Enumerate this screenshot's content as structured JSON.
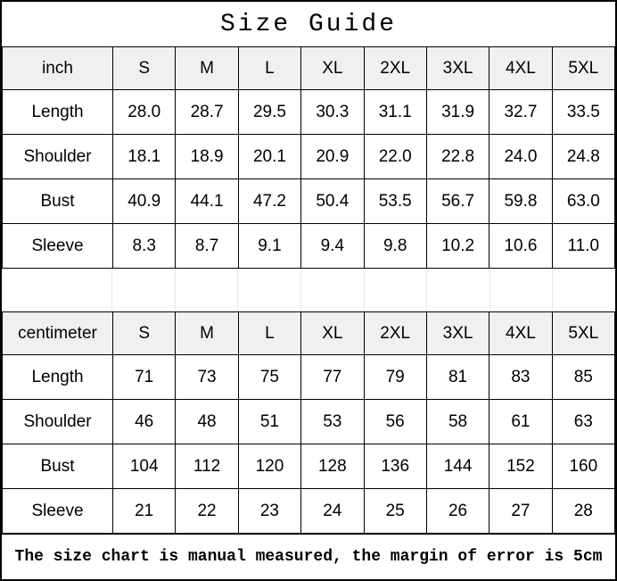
{
  "title": "Size Guide",
  "footer_note": "The size chart is manual measured, the margin of error is 5cm",
  "colors": {
    "border": "#000000",
    "header_row_bg": "#f0f0f0",
    "gap_line": "#e8e8e8",
    "text": "#000000",
    "background": "#ffffff"
  },
  "chart_data": [
    {
      "type": "table",
      "title": "Size Guide",
      "unit": "inch",
      "columns": [
        "S",
        "M",
        "L",
        "XL",
        "2XL",
        "3XL",
        "4XL",
        "5XL"
      ],
      "rows": [
        {
          "label": "Length",
          "values": [
            "28.0",
            "28.7",
            "29.5",
            "30.3",
            "31.1",
            "31.9",
            "32.7",
            "33.5"
          ]
        },
        {
          "label": "Shoulder",
          "values": [
            "18.1",
            "18.9",
            "20.1",
            "20.9",
            "22.0",
            "22.8",
            "24.0",
            "24.8"
          ]
        },
        {
          "label": "Bust",
          "values": [
            "40.9",
            "44.1",
            "47.2",
            "50.4",
            "53.5",
            "56.7",
            "59.8",
            "63.0"
          ]
        },
        {
          "label": "Sleeve",
          "values": [
            "8.3",
            "8.7",
            "9.1",
            "9.4",
            "9.8",
            "10.2",
            "10.6",
            "11.0"
          ]
        }
      ]
    },
    {
      "type": "table",
      "title": "Size Guide",
      "unit": "centimeter",
      "columns": [
        "S",
        "M",
        "L",
        "XL",
        "2XL",
        "3XL",
        "4XL",
        "5XL"
      ],
      "rows": [
        {
          "label": "Length",
          "values": [
            "71",
            "73",
            "75",
            "77",
            "79",
            "81",
            "83",
            "85"
          ]
        },
        {
          "label": "Shoulder",
          "values": [
            "46",
            "48",
            "51",
            "53",
            "56",
            "58",
            "61",
            "63"
          ]
        },
        {
          "label": "Bust",
          "values": [
            "104",
            "112",
            "120",
            "128",
            "136",
            "144",
            "152",
            "160"
          ]
        },
        {
          "label": "Sleeve",
          "values": [
            "21",
            "22",
            "23",
            "24",
            "25",
            "26",
            "27",
            "28"
          ]
        }
      ]
    }
  ]
}
